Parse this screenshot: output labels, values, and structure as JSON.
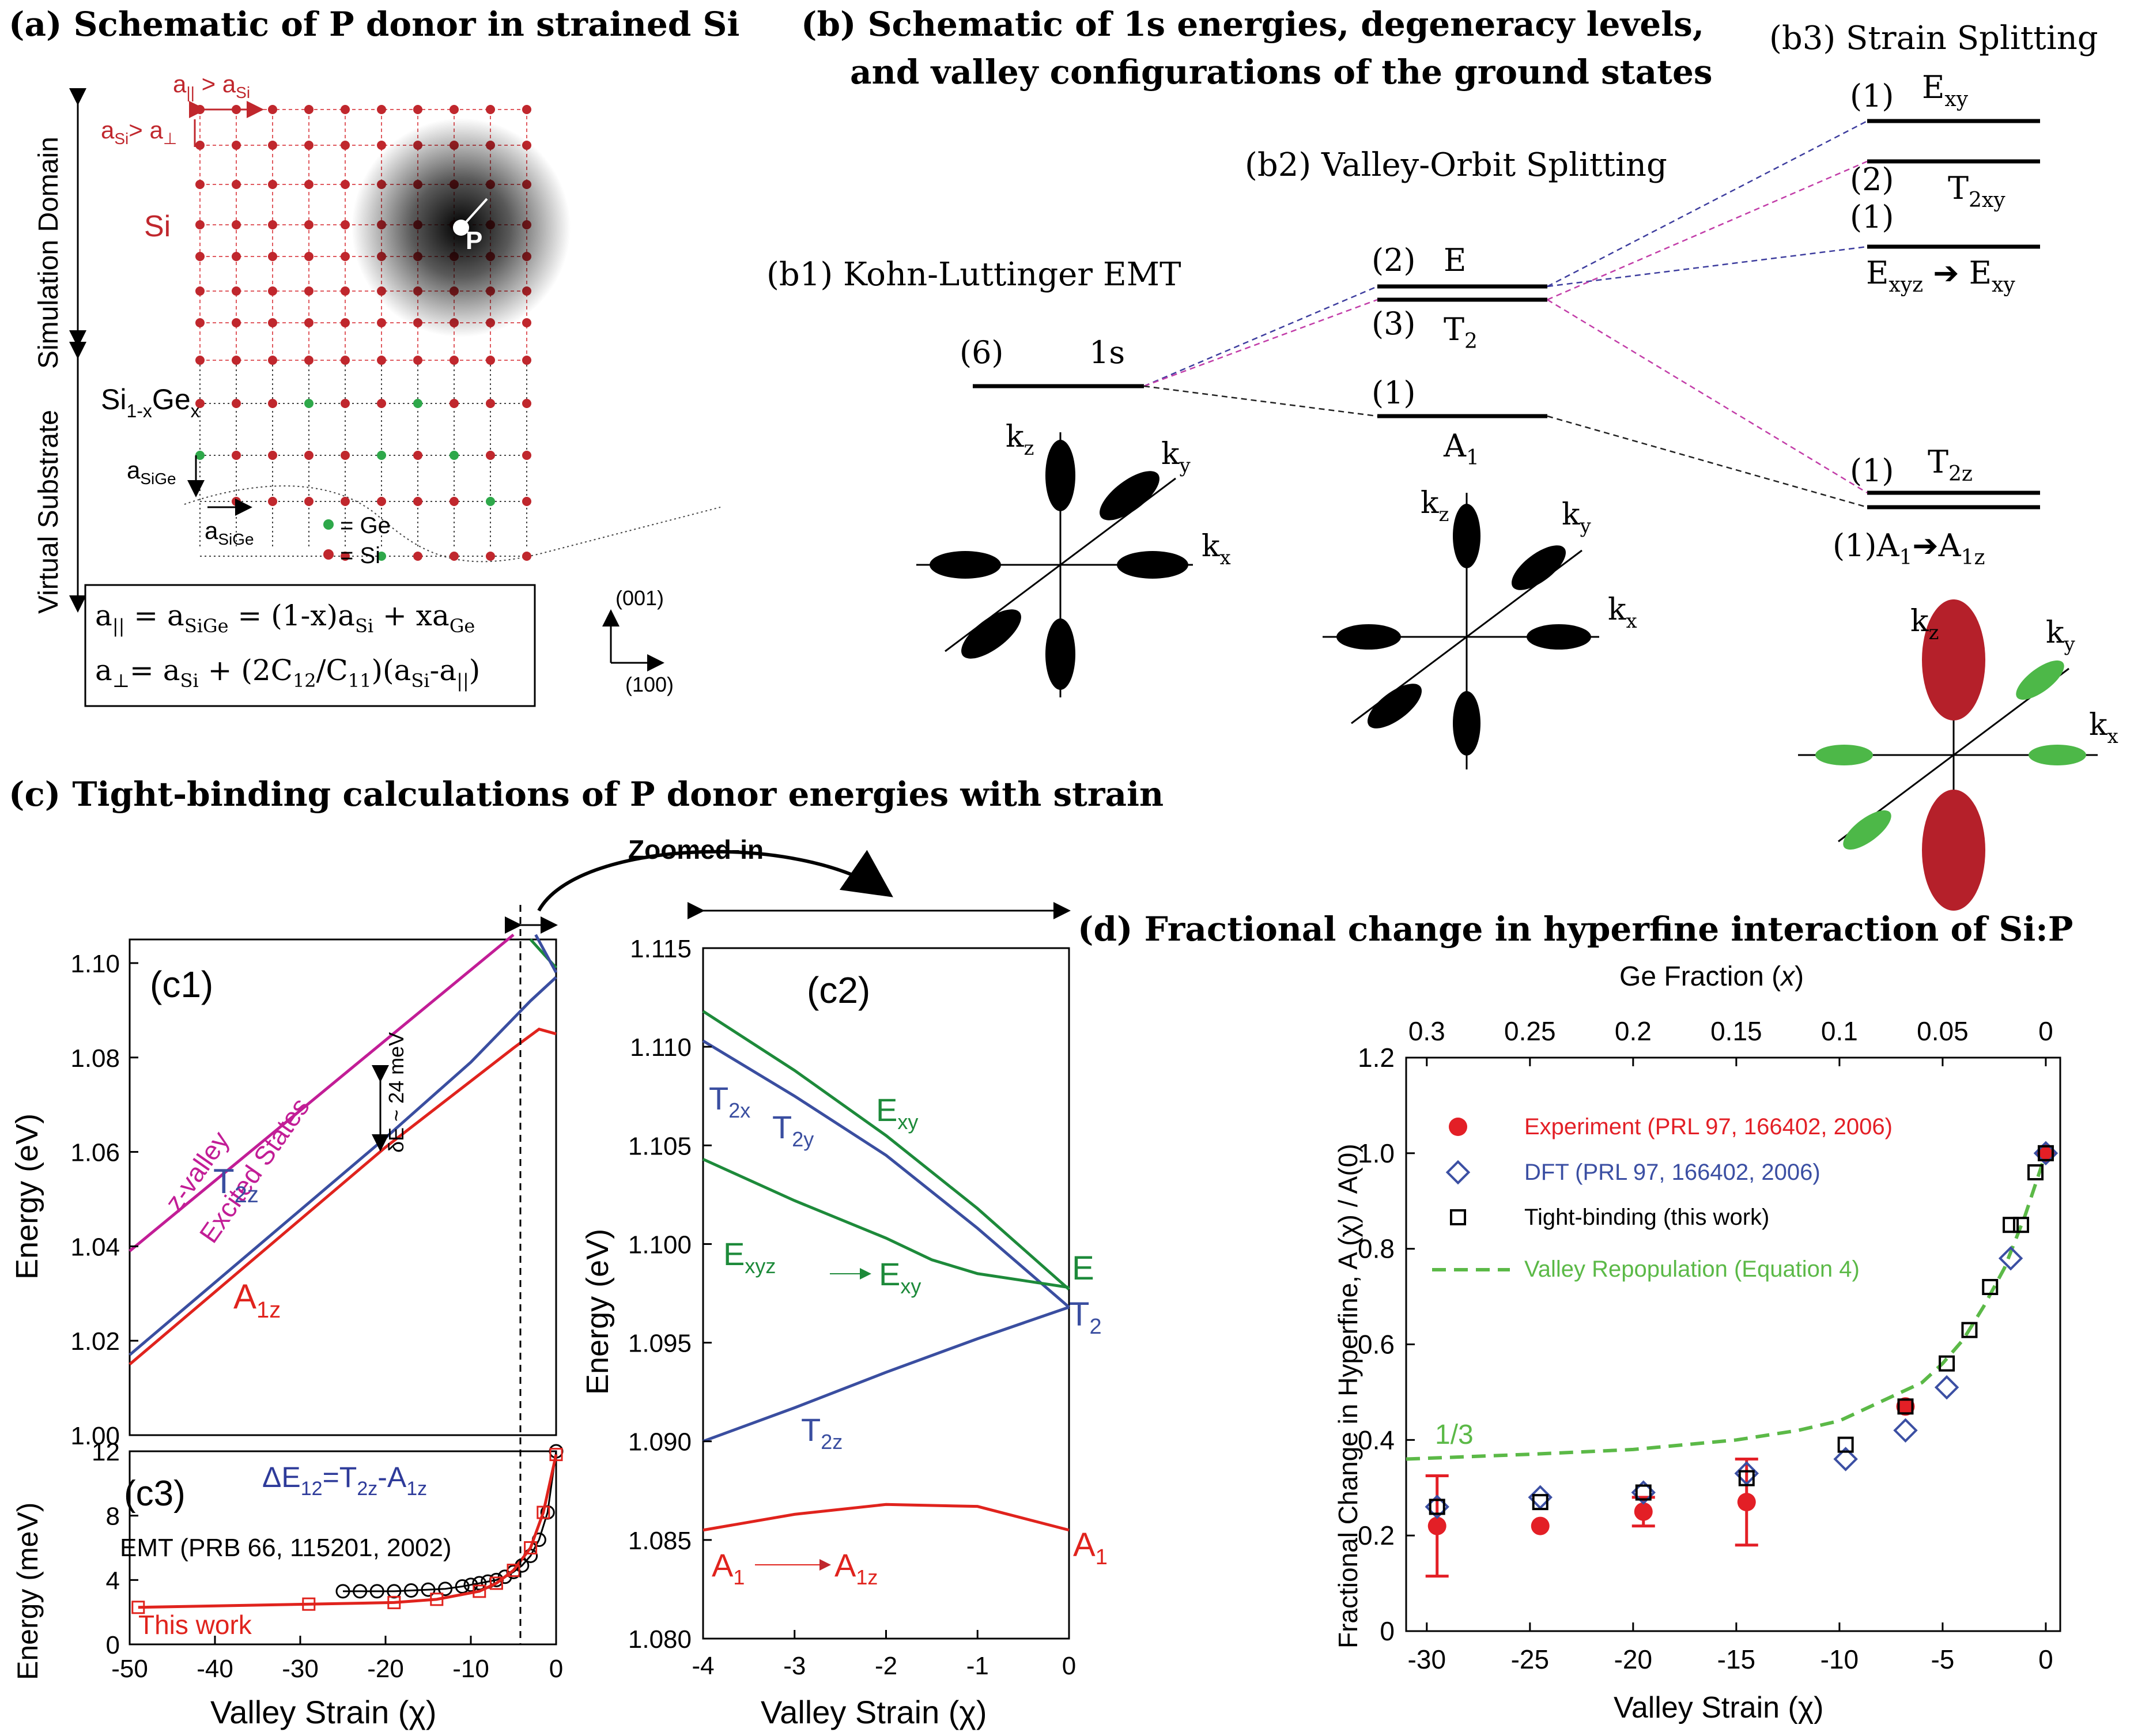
{
  "titles": {
    "a": "(a) Schematic of P donor in strained Si",
    "b_line1": "(b) Schematic of 1s energies, degeneracy levels,",
    "b_line2": "and valley configurations of the ground states",
    "c": "(c) Tight-binding calculations of P donor energies with strain",
    "d": "(d) Fractional change in hyperfine interaction of Si:P"
  },
  "panel_a": {
    "simulation_domain": "Simulation Domain",
    "virtual_substrate": "Virtual Substrate",
    "si_label": "Si",
    "sige_label": "Si1-xGex",
    "p_label": "P",
    "a_par_gt": "a‖ > aSi",
    "a_si_gt": "aSi > a⊥",
    "a_sige_v": "aSiGe",
    "a_sige_h": "aSiGe",
    "legend_ge": "= Ge",
    "legend_si": "= Si",
    "eq1": "a‖ = aSiGe = (1-x)aSi + xaGe",
    "eq2": "a⊥= aSi + (2C12/C11)(aSi-a‖)",
    "axis_001": "(001)",
    "axis_100": "(100)",
    "colors": {
      "si": "#c0272d",
      "ge": "#2ea84a"
    }
  },
  "panel_b": {
    "b1": "(b1) Kohn-Luttinger EMT",
    "b2": "(b2) Valley-Orbit Splitting",
    "b3": "(b3) Strain Splitting",
    "levels": {
      "ls_deg": "(6)",
      "ls_name": "1s",
      "e_deg": "(2)",
      "e_name": "E",
      "t2_deg": "(3)",
      "t2_name": "T2",
      "a1_deg": "(1)",
      "a1_name": "A1",
      "exy_deg": "(1)",
      "exy_name": "Exy",
      "t2xy_deg": "(2)",
      "t2xy_name": "T2xy",
      "exyz_deg": "(1)",
      "exyz_name": "Exyz → Exy",
      "t2z_deg": "(1)",
      "t2z_name": "T2z",
      "a1z_deg": "(1)",
      "a1z_name": "A1 → A1z"
    },
    "axes": {
      "kx": "kx",
      "ky": "ky",
      "kz": "kz"
    }
  },
  "panel_c": {
    "zoom_label": "Zoomed-in",
    "c1": {
      "tag": "(c1)",
      "ylabel": "Energy (eV)",
      "yticks": [
        "1.10",
        "1.08",
        "1.06",
        "1.04",
        "1.02",
        "1.00"
      ],
      "curve_labels": {
        "zvalley": "z-valley",
        "excited": "Excited States",
        "t2z": "T2z",
        "a1z": "A1z",
        "delta": "δE ~ 24 meV"
      }
    },
    "c3": {
      "tag": "(c3)",
      "ylabel": "Energy (meV)",
      "xlabel": "Valley Strain (χ)",
      "yticks": [
        "12",
        "8",
        "4",
        "0"
      ],
      "xticks": [
        "-50",
        "-40",
        "-30",
        "-20",
        "-10",
        "0"
      ],
      "delta_label": "ΔE12=T2z-A1z",
      "emt_label": "EMT (PRB 66, 115201, 2002)",
      "this_work": "This work"
    },
    "c2": {
      "tag": "(c2)",
      "ylabel": "Energy (eV)",
      "xlabel": "Valley Strain (χ)",
      "yticks": [
        "1.115",
        "1.110",
        "1.105",
        "1.100",
        "1.095",
        "1.090",
        "1.085",
        "1.080"
      ],
      "xticks": [
        "-4",
        "-3",
        "-2",
        "-1",
        "0"
      ],
      "labels": {
        "t2x": "T2x",
        "t2y": "T2y",
        "exy": "Exy",
        "exyz": "Exyz",
        "exy2": "Exy",
        "e": "E",
        "t2": "T2",
        "t2z": "T2z",
        "a1": "A1",
        "a1z": "A1z",
        "a1r": "A1"
      }
    }
  },
  "panel_d": {
    "top_axis_label": "Ge Fraction (x)",
    "top_ticks": [
      "0.3",
      "0.25",
      "0.2",
      "0.15",
      "0.1",
      "0.05",
      "0"
    ],
    "ylabel": "Fractional Change in Hyperfine, A (χ) / A(0)",
    "xlabel": "Valley Strain (χ)",
    "yticks": [
      "1.2",
      "1.0",
      "0.8",
      "0.6",
      "0.4",
      "0.2",
      "0"
    ],
    "xticks": [
      "-30",
      "-25",
      "-20",
      "-15",
      "-10",
      "-5",
      "0"
    ],
    "legend": {
      "experiment": "Experiment (PRL 97, 166402, 2006)",
      "dft": "DFT (PRL 97, 166402, 2006)",
      "tb": "Tight-binding (this work)",
      "valley": "Valley Repopulation (Equation 4)"
    },
    "one_third": "1/3",
    "colors": {
      "experiment": "#e31f26",
      "dft": "#3b4fa3",
      "tb": "#000000",
      "valley": "#5bb947"
    }
  },
  "chart_data": [
    {
      "type": "line",
      "id": "c1",
      "title": "(c1)",
      "xlabel": "Valley Strain (χ)",
      "ylabel": "Energy (eV)",
      "xlim": [
        -50,
        0
      ],
      "ylim": [
        1.0,
        1.105
      ],
      "series": [
        {
          "name": "z-valley Excited States",
          "color": "#c21d96",
          "x": [
            -50,
            -5
          ],
          "y": [
            1.039,
            1.106
          ]
        },
        {
          "name": "T2z",
          "color": "#3a4ea0",
          "x": [
            -50,
            -20,
            -10,
            -3,
            0
          ],
          "y": [
            1.017,
            1.063,
            1.079,
            1.092,
            1.097
          ]
        },
        {
          "name": "A1z",
          "color": "#e0231d",
          "x": [
            -50,
            -20,
            -10,
            -5,
            -2,
            0
          ],
          "y": [
            1.015,
            1.061,
            1.075,
            1.082,
            1.086,
            1.085
          ]
        }
      ]
    },
    {
      "type": "line",
      "id": "c3",
      "title": "(c3)",
      "xlabel": "Valley Strain (χ)",
      "ylabel": "Energy (meV)",
      "xlim": [
        -50,
        0
      ],
      "ylim": [
        0,
        12
      ],
      "series": [
        {
          "name": "This work",
          "color": "#e0231d",
          "x": [
            -49,
            -29,
            -19,
            -14,
            -9,
            -7,
            -5,
            -3,
            -1.5,
            0
          ],
          "y": [
            2.3,
            2.5,
            2.6,
            2.8,
            3.3,
            3.8,
            4.6,
            6.0,
            8.2,
            11.8
          ]
        },
        {
          "name": "EMT (PRB 66, 115201, 2002)",
          "color": "#000000",
          "x": [
            -25,
            -23,
            -21,
            -19,
            -17,
            -15,
            -13,
            -11,
            -10,
            -9,
            -8,
            -7,
            -6,
            -5,
            -4,
            -3,
            -2,
            -1,
            0
          ],
          "y": [
            3.3,
            3.3,
            3.3,
            3.3,
            3.35,
            3.4,
            3.45,
            3.6,
            3.7,
            3.8,
            3.9,
            4.0,
            4.2,
            4.5,
            4.9,
            5.5,
            6.5,
            8.2,
            12.0
          ]
        }
      ]
    },
    {
      "type": "line",
      "id": "c2",
      "title": "(c2)",
      "xlabel": "Valley Strain (χ)",
      "ylabel": "Energy (eV)",
      "xlim": [
        -4,
        0
      ],
      "ylim": [
        1.08,
        1.115
      ],
      "series": [
        {
          "name": "Exy",
          "color": "#1d8a3a",
          "x": [
            -4,
            -3,
            -2,
            -1,
            0
          ],
          "y": [
            1.1118,
            1.1088,
            1.1055,
            1.1018,
            1.0977
          ]
        },
        {
          "name": "T2x/T2y",
          "color": "#3a4ea0",
          "x": [
            -4,
            -3,
            -2,
            -1,
            0
          ],
          "y": [
            1.1103,
            1.1075,
            1.1045,
            1.1008,
            1.0968
          ]
        },
        {
          "name": "Exyz→Exy",
          "color": "#1d8a3a",
          "x": [
            -4,
            -3,
            -2,
            -1.5,
            -1,
            0
          ],
          "y": [
            1.1043,
            1.1022,
            1.1003,
            1.0992,
            1.0985,
            1.0978
          ]
        },
        {
          "name": "T2z",
          "color": "#3a4ea0",
          "x": [
            -4,
            -3,
            -2,
            -1,
            0
          ],
          "y": [
            1.09,
            1.0917,
            1.0935,
            1.0952,
            1.0968
          ]
        },
        {
          "name": "A1→A1z",
          "color": "#e0231d",
          "x": [
            -4,
            -3,
            -2,
            -1,
            0
          ],
          "y": [
            1.0855,
            1.0863,
            1.0868,
            1.0867,
            1.0855
          ]
        }
      ]
    },
    {
      "type": "scatter",
      "id": "d",
      "title": "(d) Fractional change in hyperfine interaction of Si:P",
      "xlabel": "Valley Strain (χ)",
      "ylabel": "Fractional Change in Hyperfine, A (χ) / A(0)",
      "xlim": [
        -31,
        0.7
      ],
      "ylim": [
        0,
        1.2
      ],
      "top_axis": {
        "label": "Ge Fraction (x)",
        "ticks": [
          0.3,
          0.25,
          0.2,
          0.15,
          0.1,
          0.05,
          0
        ]
      },
      "series": [
        {
          "name": "Experiment (PRL 97, 166402, 2006)",
          "marker": "circle",
          "color": "#e31f26",
          "x": [
            -29.5,
            -24.5,
            -19.5,
            -14.5,
            -6.8,
            0
          ],
          "y": [
            0.22,
            0.22,
            0.25,
            0.27,
            0.47,
            1.0
          ],
          "err": [
            0.105,
            0,
            0.03,
            0.09,
            0,
            0
          ]
        },
        {
          "name": "DFT (PRL 97, 166402, 2006)",
          "marker": "diamond",
          "color": "#3b4fa3",
          "x": [
            -29.5,
            -24.5,
            -19.5,
            -14.5,
            -9.7,
            -6.8,
            -4.8,
            -1.7,
            0
          ],
          "y": [
            0.26,
            0.28,
            0.29,
            0.33,
            0.36,
            0.42,
            0.51,
            0.78,
            1.0
          ]
        },
        {
          "name": "Tight-binding (this work)",
          "marker": "square",
          "color": "#000000",
          "x": [
            -29.5,
            -24.5,
            -19.5,
            -14.5,
            -9.7,
            -6.8,
            -4.8,
            -3.7,
            -2.7,
            -1.7,
            -1.2,
            -0.5,
            0
          ],
          "y": [
            0.26,
            0.27,
            0.29,
            0.32,
            0.39,
            0.47,
            0.56,
            0.63,
            0.72,
            0.85,
            0.85,
            0.96,
            1.0
          ]
        },
        {
          "name": "Valley Repopulation (Equation 4)",
          "marker": "dashed-line",
          "color": "#5bb947",
          "x": [
            -31,
            -25,
            -20,
            -15,
            -12,
            -10,
            -8,
            -6,
            -5,
            -4,
            -3,
            -2,
            -1,
            0
          ],
          "y": [
            0.36,
            0.37,
            0.38,
            0.4,
            0.42,
            0.44,
            0.48,
            0.52,
            0.56,
            0.61,
            0.68,
            0.76,
            0.87,
            1.0
          ]
        }
      ]
    }
  ]
}
